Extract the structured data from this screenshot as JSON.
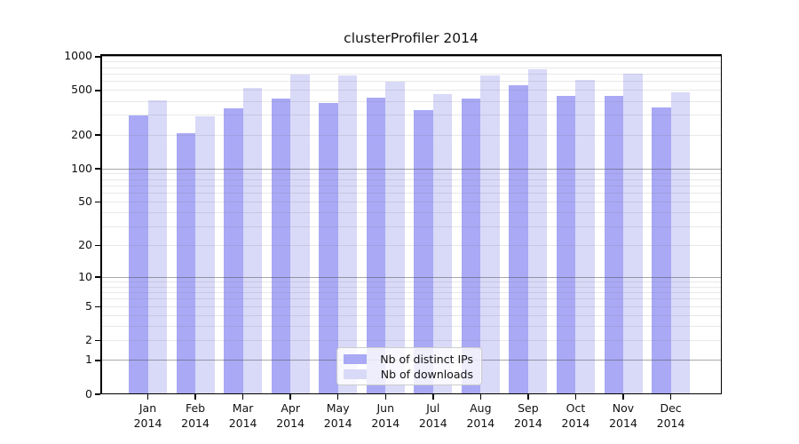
{
  "chart_data": {
    "type": "bar",
    "title": "clusterProfiler 2014",
    "categories": [
      "Jan 2014",
      "Feb 2014",
      "Mar 2014",
      "Apr 2014",
      "May 2014",
      "Jun 2014",
      "Jul 2014",
      "Aug 2014",
      "Sep 2014",
      "Oct 2014",
      "Nov 2014",
      "Dec 2014"
    ],
    "series": [
      {
        "name": "Nb of distinct IPs",
        "color": "#a9a9f6",
        "values": [
          300,
          210,
          345,
          425,
          385,
          430,
          335,
          425,
          555,
          445,
          445,
          355
        ]
      },
      {
        "name": "Nb of downloads",
        "color": "#d9d9f8",
        "values": [
          405,
          292,
          530,
          690,
          680,
          600,
          462,
          680,
          775,
          625,
          700,
          485
        ]
      }
    ],
    "yscale": "log1p",
    "yticks": [
      0,
      1,
      2,
      5,
      10,
      20,
      50,
      100,
      200,
      500,
      1000
    ],
    "ytick_labels": [
      "0",
      "1",
      "2",
      "5",
      "10",
      "20",
      "50",
      "100",
      "200",
      "500",
      "1000"
    ],
    "ylim": [
      0,
      1052
    ],
    "xlabel": "",
    "ylabel": "",
    "grid": "horizontal, log minor lines + darker major lines at powers of 10",
    "legend_position": "lower center inside plot"
  },
  "colors": {
    "background": "#ffffff",
    "bar_ips": "#a9a9f6",
    "bar_downloads": "#d9d9f8",
    "grid_minor": "#e8e8e8",
    "grid_major": "#a8a8a8",
    "spine": "#000000",
    "text": "#111111",
    "legend_border": "#cccccc"
  }
}
